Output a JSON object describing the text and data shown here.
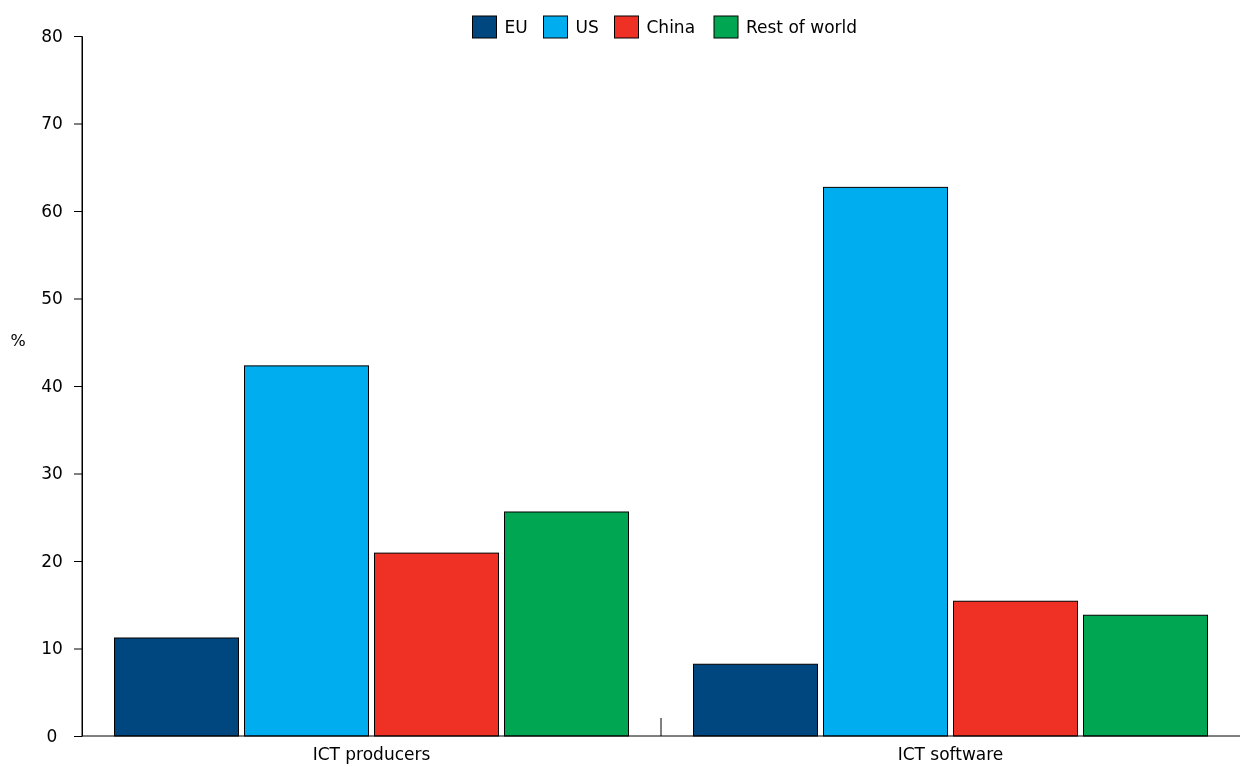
{
  "chart_data": {
    "type": "bar",
    "ylabel": "%",
    "categories": [
      "ICT producers",
      "ICT software"
    ],
    "series": [
      {
        "name": "EU",
        "color": "#00467f",
        "values": [
          11.2,
          8.2
        ]
      },
      {
        "name": "US",
        "color": "#00aeef",
        "values": [
          42.3,
          62.7
        ]
      },
      {
        "name": "China",
        "color": "#ee3124",
        "values": [
          20.9,
          15.4
        ]
      },
      {
        "name": "Rest of world",
        "color": "#00a651",
        "values": [
          25.6,
          13.8
        ]
      }
    ],
    "ylim": [
      0,
      80
    ],
    "yticks": [
      0,
      10,
      20,
      30,
      40,
      50,
      60,
      70,
      80
    ],
    "grid": false,
    "legend": "top"
  }
}
